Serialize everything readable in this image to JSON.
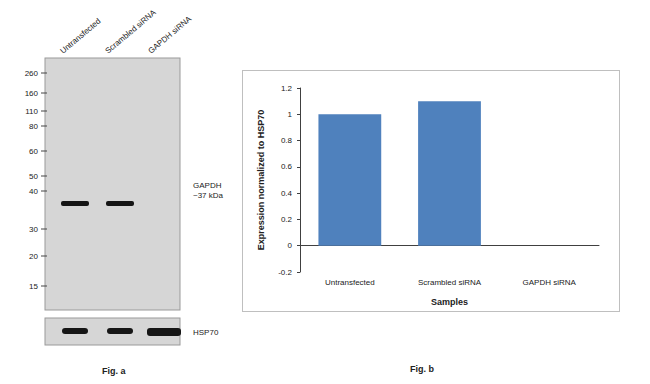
{
  "chart_data": {
    "type": "bar",
    "categories": [
      "Untransfected",
      "Scrambled siRNA",
      "GAPDH siRNA"
    ],
    "values": [
      1,
      1.1,
      0
    ],
    "color": "#4f81bd",
    "xlabel": "Samples",
    "ylabel": "Expression normalized to HSP70",
    "ylim": [
      -0.2,
      1.2
    ],
    "yticks": [
      -0.2,
      0,
      0.2,
      0.4,
      0.6,
      0.8,
      1,
      1.2
    ],
    "grid": false
  },
  "blot": {
    "lanes": [
      "Untransfected",
      "Scrambled siRNA",
      "GAPDH siRNA"
    ],
    "markers": [
      260,
      160,
      110,
      80,
      60,
      50,
      40,
      30,
      20,
      15
    ],
    "target_label": "GAPDH",
    "target_size": "~37 kDa",
    "target_band": [
      true,
      true,
      false
    ],
    "loading_control": "HSP70"
  },
  "figure_labels": {
    "a": "Fig. a",
    "b": "Fig. b"
  }
}
